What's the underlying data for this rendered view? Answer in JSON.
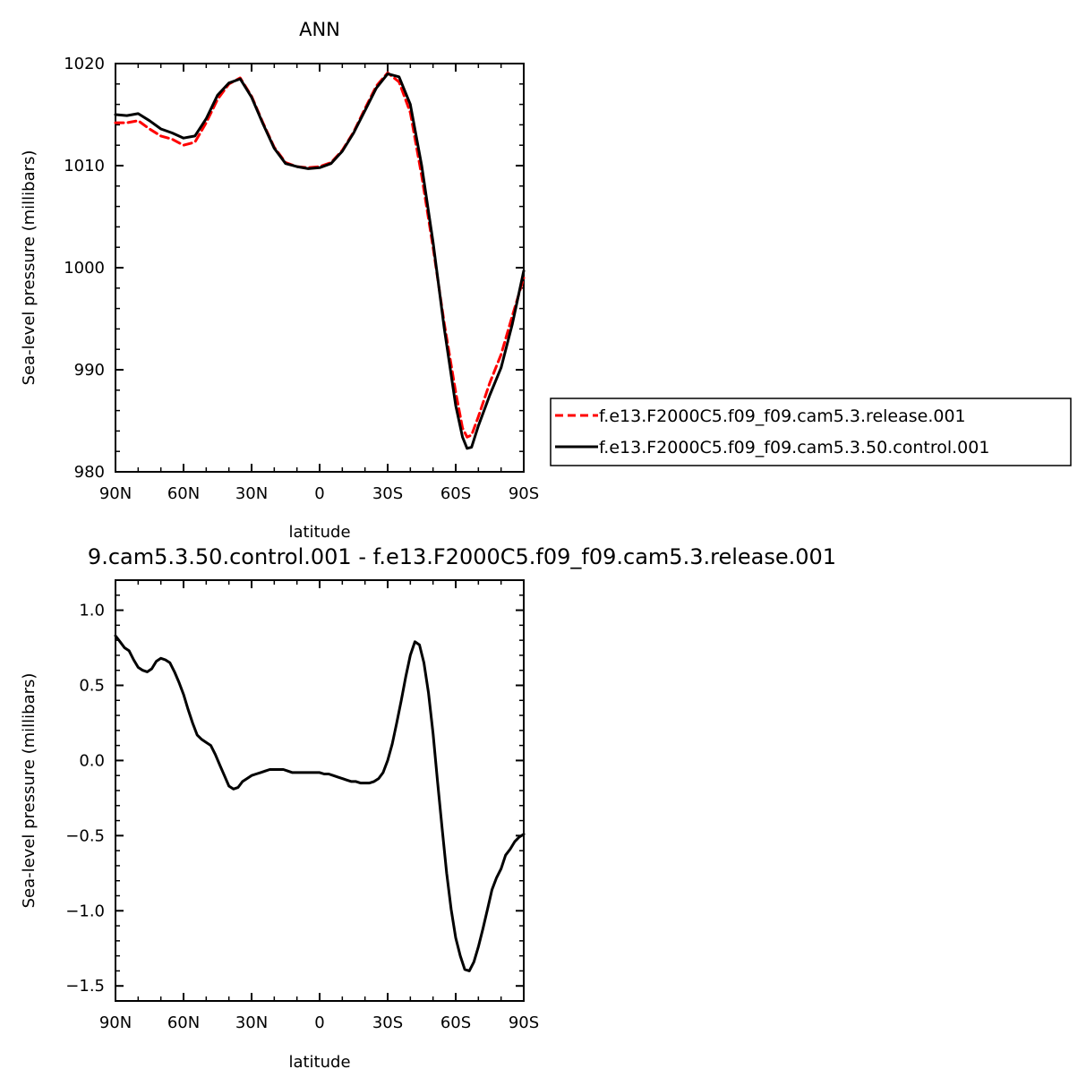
{
  "chart_data": [
    {
      "type": "line",
      "title": "ANN",
      "xlabel": "latitude",
      "ylabel": "Sea-level pressure (millibars)",
      "xlim": [
        90,
        -90
      ],
      "ylim": [
        980,
        1020
      ],
      "xticks": [
        {
          "value": 90,
          "label": "90N"
        },
        {
          "value": 60,
          "label": "60N"
        },
        {
          "value": 30,
          "label": "30N"
        },
        {
          "value": 0,
          "label": "0"
        },
        {
          "value": -30,
          "label": "30S"
        },
        {
          "value": -60,
          "label": "60S"
        },
        {
          "value": -90,
          "label": "90S"
        }
      ],
      "yticks": [
        {
          "value": 1020,
          "label": "1020"
        },
        {
          "value": 1010,
          "label": "1010"
        },
        {
          "value": 1000,
          "label": "1000"
        },
        {
          "value": 990,
          "label": "990"
        },
        {
          "value": 980,
          "label": "980"
        }
      ],
      "grid": false,
      "legend_position": "right",
      "series": [
        {
          "name": "f.e13.F2000C5.f09_f09.cam5.3.release.001",
          "color": "#ff0000",
          "dash": "dashed",
          "x": [
            90,
            85,
            80,
            75,
            70,
            65,
            60,
            55,
            50,
            45,
            40,
            35,
            30,
            25,
            20,
            15,
            10,
            5,
            0,
            -5,
            -10,
            -15,
            -20,
            -25,
            -30,
            -35,
            -40,
            -45,
            -50,
            -55,
            -60,
            -63,
            -65,
            -67,
            -70,
            -75,
            -80,
            -85,
            -90
          ],
          "y": [
            1014.2,
            1014.2,
            1014.4,
            1013.6,
            1012.9,
            1012.6,
            1012.0,
            1012.3,
            1014.2,
            1016.5,
            1018.0,
            1018.6,
            1016.8,
            1014.2,
            1011.8,
            1010.3,
            1009.9,
            1009.8,
            1009.9,
            1010.3,
            1011.5,
            1013.3,
            1015.6,
            1017.8,
            1019.1,
            1018.2,
            1015.2,
            1009.0,
            1002.0,
            994.5,
            987.8,
            984.3,
            983.4,
            983.6,
            985.4,
            988.7,
            991.5,
            995.3,
            999.0
          ]
        },
        {
          "name": "f.e13.F2000C5.f09_f09.cam5.3.50.control.001",
          "color": "#000000",
          "dash": "solid",
          "x": [
            90,
            85,
            80,
            75,
            70,
            65,
            60,
            55,
            50,
            45,
            40,
            35,
            30,
            25,
            20,
            15,
            10,
            5,
            0,
            -5,
            -10,
            -15,
            -20,
            -25,
            -30,
            -35,
            -40,
            -45,
            -50,
            -55,
            -60,
            -63,
            -65,
            -67,
            -70,
            -75,
            -80,
            -85,
            -90
          ],
          "y": [
            1015.0,
            1014.9,
            1015.1,
            1014.4,
            1013.6,
            1013.2,
            1012.7,
            1012.9,
            1014.6,
            1016.9,
            1018.1,
            1018.5,
            1016.7,
            1014.1,
            1011.7,
            1010.2,
            1009.9,
            1009.7,
            1009.8,
            1010.2,
            1011.4,
            1013.2,
            1015.4,
            1017.6,
            1019.0,
            1018.7,
            1016.0,
            1010.0,
            1002.5,
            994.0,
            986.5,
            983.4,
            982.3,
            982.4,
            984.5,
            987.5,
            990.2,
            994.5,
            999.7
          ]
        }
      ]
    },
    {
      "type": "line",
      "title": "9.cam5.3.50.control.001 - f.e13.F2000C5.f09_f09.cam5.3.release.001",
      "xlabel": "latitude",
      "ylabel": "Sea-level pressure (millibars)",
      "xlim": [
        90,
        -90
      ],
      "ylim": [
        -1.6,
        1.2
      ],
      "xticks": [
        {
          "value": 90,
          "label": "90N"
        },
        {
          "value": 60,
          "label": "60N"
        },
        {
          "value": 30,
          "label": "30N"
        },
        {
          "value": 0,
          "label": "0"
        },
        {
          "value": -30,
          "label": "30S"
        },
        {
          "value": -60,
          "label": "60S"
        },
        {
          "value": -90,
          "label": "90S"
        }
      ],
      "yticks": [
        {
          "value": 1.0,
          "label": "1.0"
        },
        {
          "value": 0.5,
          "label": "0.5"
        },
        {
          "value": 0.0,
          "label": "0.0"
        },
        {
          "value": -0.5,
          "label": "−0.5"
        },
        {
          "value": -1.0,
          "label": "−1.0"
        },
        {
          "value": -1.5,
          "label": "−1.5"
        }
      ],
      "grid": false,
      "series": [
        {
          "color": "#000000",
          "dash": "solid",
          "x": [
            90,
            88,
            86,
            84,
            82,
            80,
            78,
            76,
            74,
            72,
            70,
            68,
            66,
            64,
            62,
            60,
            58,
            56,
            54,
            52,
            50,
            48,
            46,
            44,
            42,
            40,
            38,
            36,
            34,
            32,
            30,
            28,
            26,
            24,
            22,
            20,
            18,
            16,
            14,
            12,
            10,
            8,
            6,
            4,
            2,
            0,
            -2,
            -4,
            -6,
            -8,
            -10,
            -12,
            -14,
            -16,
            -18,
            -20,
            -22,
            -24,
            -26,
            -28,
            -30,
            -32,
            -34,
            -36,
            -38,
            -40,
            -42,
            -44,
            -46,
            -48,
            -50,
            -52,
            -54,
            -56,
            -58,
            -60,
            -62,
            -64,
            -66,
            -68,
            -70,
            -72,
            -74,
            -76,
            -78,
            -80,
            -82,
            -84,
            -86,
            -88,
            -90
          ],
          "y": [
            0.83,
            0.79,
            0.75,
            0.73,
            0.67,
            0.62,
            0.6,
            0.59,
            0.61,
            0.66,
            0.68,
            0.67,
            0.65,
            0.59,
            0.52,
            0.44,
            0.34,
            0.25,
            0.17,
            0.14,
            0.12,
            0.1,
            0.04,
            -0.03,
            -0.1,
            -0.17,
            -0.19,
            -0.18,
            -0.14,
            -0.12,
            -0.1,
            -0.09,
            -0.08,
            -0.07,
            -0.06,
            -0.06,
            -0.06,
            -0.06,
            -0.07,
            -0.08,
            -0.08,
            -0.08,
            -0.08,
            -0.08,
            -0.08,
            -0.08,
            -0.09,
            -0.09,
            -0.1,
            -0.11,
            -0.12,
            -0.13,
            -0.14,
            -0.14,
            -0.15,
            -0.15,
            -0.15,
            -0.14,
            -0.12,
            -0.08,
            0.0,
            0.11,
            0.25,
            0.4,
            0.56,
            0.7,
            0.79,
            0.77,
            0.65,
            0.45,
            0.18,
            -0.14,
            -0.45,
            -0.75,
            -0.99,
            -1.18,
            -1.3,
            -1.39,
            -1.4,
            -1.34,
            -1.24,
            -1.12,
            -0.99,
            -0.86,
            -0.78,
            -0.72,
            -0.63,
            -0.59,
            -0.54,
            -0.51,
            -0.49
          ]
        }
      ]
    }
  ]
}
